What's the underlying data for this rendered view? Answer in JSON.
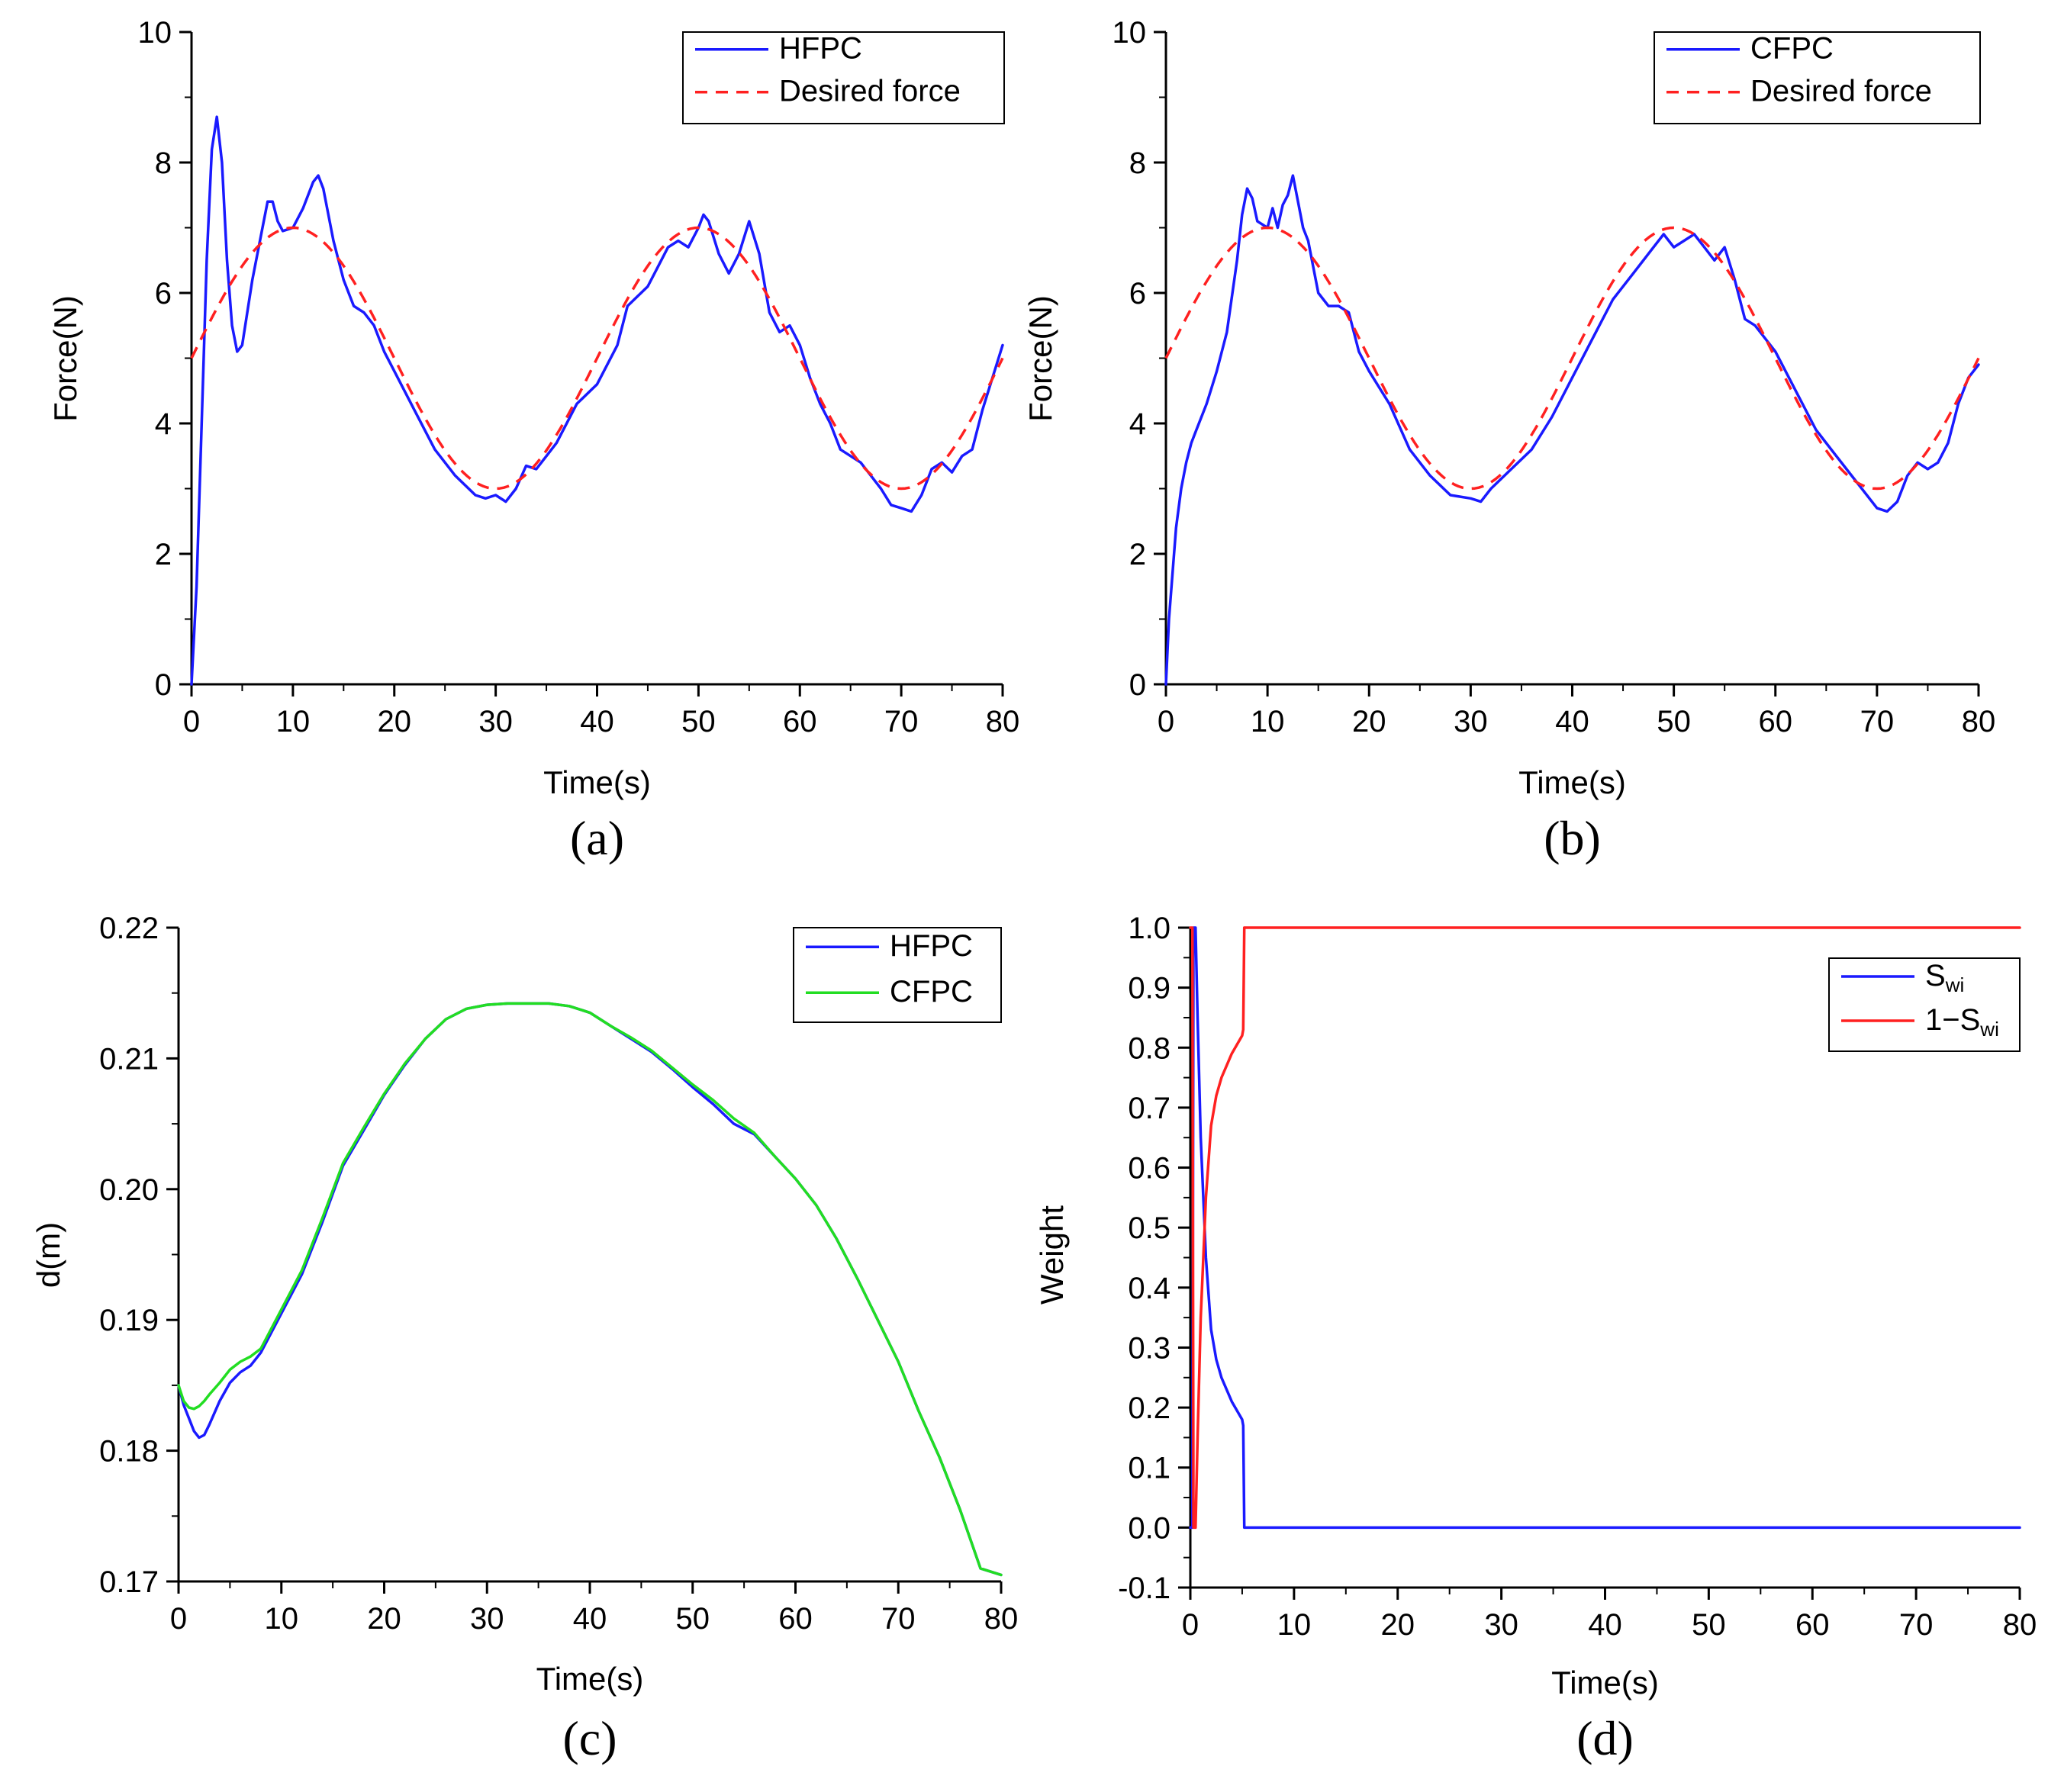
{
  "figure": {
    "panels": [
      "a",
      "b",
      "c",
      "d"
    ]
  },
  "chart_data": [
    {
      "id": "a",
      "type": "line",
      "caption": "(a)",
      "title": "",
      "xlabel": "Time(s)",
      "ylabel": "Force(N)",
      "xlim": [
        0,
        80
      ],
      "ylim": [
        0,
        10
      ],
      "xticks": [
        0,
        10,
        20,
        30,
        40,
        50,
        60,
        70,
        80
      ],
      "yticks": [
        0,
        2,
        4,
        6,
        8,
        10
      ],
      "xtick_labels": [
        "0",
        "10",
        "20",
        "30",
        "40",
        "50",
        "60",
        "70",
        "80"
      ],
      "ytick_labels": [
        "0",
        "2",
        "4",
        "6",
        "8",
        "10"
      ],
      "legend": {
        "position": "top-right"
      },
      "series": [
        {
          "name": "HFPC",
          "color": "#1a1aff",
          "style": "solid",
          "x": [
            0,
            0.5,
            1,
            1.5,
            2,
            2.5,
            3,
            3.5,
            4,
            4.5,
            5,
            6,
            7,
            7.5,
            8,
            8.5,
            9,
            10,
            11,
            12,
            12.5,
            13,
            14,
            15,
            16,
            17,
            18,
            19,
            20,
            22,
            24,
            26,
            28,
            29,
            30,
            31,
            32,
            33,
            34,
            35,
            36,
            38,
            40,
            42,
            43,
            44,
            45,
            46,
            47,
            48,
            49,
            50,
            50.5,
            51,
            52,
            53,
            54,
            55,
            56,
            57,
            58,
            59,
            60,
            61,
            62,
            63,
            64,
            66,
            68,
            69,
            70,
            71,
            72,
            73,
            74,
            75,
            76,
            77,
            78,
            79,
            80
          ],
          "y": [
            0,
            1.5,
            4,
            6.5,
            8.2,
            8.7,
            8.0,
            6.5,
            5.5,
            5.1,
            5.2,
            6.2,
            7.0,
            7.4,
            7.4,
            7.1,
            6.95,
            7.0,
            7.3,
            7.7,
            7.8,
            7.6,
            6.8,
            6.2,
            5.8,
            5.7,
            5.5,
            5.1,
            4.8,
            4.2,
            3.6,
            3.2,
            2.9,
            2.85,
            2.9,
            2.8,
            3.0,
            3.35,
            3.3,
            3.5,
            3.7,
            4.3,
            4.6,
            5.2,
            5.8,
            5.95,
            6.1,
            6.4,
            6.7,
            6.8,
            6.7,
            7.0,
            7.2,
            7.1,
            6.6,
            6.3,
            6.6,
            7.1,
            6.6,
            5.7,
            5.4,
            5.5,
            5.2,
            4.7,
            4.3,
            4.0,
            3.6,
            3.4,
            3.0,
            2.75,
            2.7,
            2.65,
            2.9,
            3.3,
            3.4,
            3.25,
            3.5,
            3.6,
            4.2,
            4.7,
            5.2
          ]
        },
        {
          "name": "Desired force",
          "color": "#ff2020",
          "style": "dashed",
          "function": "5 + 2*sin(2*pi*t/40)"
        }
      ]
    },
    {
      "id": "b",
      "type": "line",
      "caption": "(b)",
      "title": "",
      "xlabel": "Time(s)",
      "ylabel": "Force(N)",
      "xlim": [
        0,
        80
      ],
      "ylim": [
        0,
        10
      ],
      "xticks": [
        0,
        10,
        20,
        30,
        40,
        50,
        60,
        70,
        80
      ],
      "yticks": [
        0,
        2,
        4,
        6,
        8,
        10
      ],
      "xtick_labels": [
        "0",
        "10",
        "20",
        "30",
        "40",
        "50",
        "60",
        "70",
        "80"
      ],
      "ytick_labels": [
        "0",
        "2",
        "4",
        "6",
        "8",
        "10"
      ],
      "legend": {
        "position": "top-right"
      },
      "series": [
        {
          "name": "CFPC",
          "color": "#1a1aff",
          "style": "solid",
          "x": [
            0,
            0.3,
            0.7,
            1,
            1.5,
            2,
            2.5,
            3,
            4,
            5,
            6,
            7,
            7.5,
            8,
            8.5,
            9,
            10,
            10.5,
            11,
            11.5,
            12,
            12.5,
            13,
            13.5,
            14,
            15,
            16,
            17,
            18,
            19,
            20,
            22,
            24,
            26,
            28,
            30,
            31,
            32,
            34,
            36,
            38,
            40,
            42,
            44,
            46,
            48,
            49,
            50,
            51,
            52,
            53,
            54,
            55,
            56,
            57,
            58,
            60,
            62,
            64,
            66,
            68,
            70,
            71,
            72,
            73,
            74,
            75,
            76,
            77,
            78,
            79,
            80
          ],
          "y": [
            0,
            1,
            1.8,
            2.4,
            3.0,
            3.4,
            3.7,
            3.9,
            4.3,
            4.8,
            5.4,
            6.5,
            7.2,
            7.6,
            7.45,
            7.1,
            7.0,
            7.3,
            7.0,
            7.35,
            7.5,
            7.8,
            7.4,
            7.0,
            6.8,
            6.0,
            5.8,
            5.8,
            5.7,
            5.1,
            4.8,
            4.3,
            3.6,
            3.2,
            2.9,
            2.85,
            2.8,
            3.0,
            3.3,
            3.6,
            4.1,
            4.7,
            5.3,
            5.9,
            6.3,
            6.7,
            6.9,
            6.7,
            6.8,
            6.9,
            6.7,
            6.5,
            6.7,
            6.2,
            5.6,
            5.5,
            5.1,
            4.5,
            3.9,
            3.5,
            3.1,
            2.7,
            2.65,
            2.8,
            3.2,
            3.4,
            3.3,
            3.4,
            3.7,
            4.3,
            4.7,
            4.9
          ]
        },
        {
          "name": "Desired force",
          "color": "#ff2020",
          "style": "dashed",
          "function": "5 + 2*sin(2*pi*t/40)"
        }
      ]
    },
    {
      "id": "c",
      "type": "line",
      "caption": "(c)",
      "title": "",
      "xlabel": "Time(s)",
      "ylabel": "d(m)",
      "xlim": [
        0,
        80
      ],
      "ylim": [
        0.17,
        0.22
      ],
      "xticks": [
        0,
        10,
        20,
        30,
        40,
        50,
        60,
        70,
        80
      ],
      "yticks": [
        0.17,
        0.18,
        0.19,
        0.2,
        0.21,
        0.22
      ],
      "xtick_labels": [
        "0",
        "10",
        "20",
        "30",
        "40",
        "50",
        "60",
        "70",
        "80"
      ],
      "ytick_labels": [
        "0.17",
        "0.18",
        "0.19",
        "0.20",
        "0.21",
        "0.22"
      ],
      "legend": {
        "position": "top-right"
      },
      "series": [
        {
          "name": "HFPC",
          "color": "#1a1aff",
          "style": "solid",
          "x": [
            0,
            0.5,
            1,
            1.5,
            2,
            2.5,
            3,
            4,
            5,
            6,
            7,
            8,
            10,
            12,
            14,
            16,
            18,
            20,
            22,
            24,
            26,
            28,
            30,
            32,
            34,
            35,
            36,
            38,
            40,
            42,
            44,
            46,
            48,
            50,
            52,
            54,
            56,
            58,
            60,
            62,
            64,
            66,
            68,
            70,
            72,
            74,
            76,
            78,
            80
          ],
          "y": [
            0.185,
            0.1835,
            0.1825,
            0.1815,
            0.181,
            0.1812,
            0.182,
            0.1838,
            0.1852,
            0.186,
            0.1865,
            0.1875,
            0.1905,
            0.1935,
            0.1975,
            0.2018,
            0.2045,
            0.2072,
            0.2095,
            0.2115,
            0.213,
            0.2138,
            0.2141,
            0.2142,
            0.2142,
            0.2142,
            0.2142,
            0.214,
            0.2135,
            0.2125,
            0.2115,
            0.2105,
            0.2092,
            0.2078,
            0.2065,
            0.205,
            0.2042,
            0.2025,
            0.2008,
            0.1988,
            0.1962,
            0.1932,
            0.19,
            0.1868,
            0.183,
            0.1795,
            0.1755,
            0.171,
            0.1705
          ]
        },
        {
          "name": "CFPC",
          "color": "#22dd22",
          "style": "solid",
          "x": [
            0,
            0.5,
            1,
            1.5,
            2,
            2.5,
            3,
            4,
            5,
            6,
            7,
            8,
            10,
            12,
            14,
            16,
            18,
            20,
            22,
            24,
            26,
            28,
            30,
            32,
            34,
            35,
            36,
            38,
            40,
            42,
            44,
            46,
            48,
            50,
            52,
            54,
            56,
            58,
            60,
            62,
            64,
            66,
            68,
            70,
            72,
            74,
            76,
            78,
            80
          ],
          "y": [
            0.185,
            0.1838,
            0.1833,
            0.1832,
            0.1834,
            0.1838,
            0.1843,
            0.1852,
            0.1862,
            0.1868,
            0.1872,
            0.1878,
            0.1908,
            0.1938,
            0.1978,
            0.202,
            0.2047,
            0.2073,
            0.2096,
            0.2115,
            0.213,
            0.2138,
            0.2141,
            0.2142,
            0.2142,
            0.2142,
            0.2142,
            0.214,
            0.2135,
            0.2125,
            0.2116,
            0.2106,
            0.2093,
            0.208,
            0.2068,
            0.2054,
            0.2043,
            0.2025,
            0.2008,
            0.1988,
            0.1962,
            0.1932,
            0.19,
            0.1868,
            0.183,
            0.1795,
            0.1755,
            0.171,
            0.1705
          ]
        }
      ]
    },
    {
      "id": "d",
      "type": "line",
      "caption": "(d)",
      "title": "",
      "xlabel": "Time(s)",
      "ylabel": "Weight",
      "xlim": [
        0,
        80
      ],
      "ylim": [
        -0.1,
        1.0
      ],
      "xticks": [
        0,
        10,
        20,
        30,
        40,
        50,
        60,
        70,
        80
      ],
      "yticks": [
        -0.1,
        0.0,
        0.1,
        0.2,
        0.3,
        0.4,
        0.5,
        0.6,
        0.7,
        0.8,
        0.9,
        1.0
      ],
      "xtick_labels": [
        "0",
        "10",
        "20",
        "30",
        "40",
        "50",
        "60",
        "70",
        "80"
      ],
      "ytick_labels": [
        "-0.1",
        "0.0",
        "0.1",
        "0.2",
        "0.3",
        "0.4",
        "0.5",
        "0.6",
        "0.7",
        "0.8",
        "0.9",
        "1.0"
      ],
      "legend": {
        "position": "top-right",
        "entries": [
          {
            "main": "S",
            "sub": "wi"
          },
          {
            "main": "1−S",
            "sub": "wi"
          }
        ]
      },
      "series": [
        {
          "name": "Swi",
          "color": "#1a1aff",
          "style": "solid",
          "x": [
            0,
            0.2,
            0.3,
            0.5,
            0.7,
            1,
            1.5,
            2,
            2.5,
            3,
            4,
            5,
            5.1,
            5.2,
            80
          ],
          "y": [
            0,
            0,
            1.0,
            1.0,
            0.85,
            0.65,
            0.45,
            0.33,
            0.28,
            0.25,
            0.21,
            0.18,
            0.17,
            0.0,
            0.0
          ]
        },
        {
          "name": "1-Swi",
          "color": "#ff2020",
          "style": "solid",
          "x": [
            0,
            0.2,
            0.3,
            0.5,
            0.7,
            1,
            1.5,
            2,
            2.5,
            3,
            4,
            5,
            5.1,
            5.2,
            80
          ],
          "y": [
            1.0,
            1.0,
            0.0,
            0.0,
            0.15,
            0.35,
            0.55,
            0.67,
            0.72,
            0.75,
            0.79,
            0.82,
            0.83,
            1.0,
            1.0
          ]
        }
      ]
    }
  ]
}
